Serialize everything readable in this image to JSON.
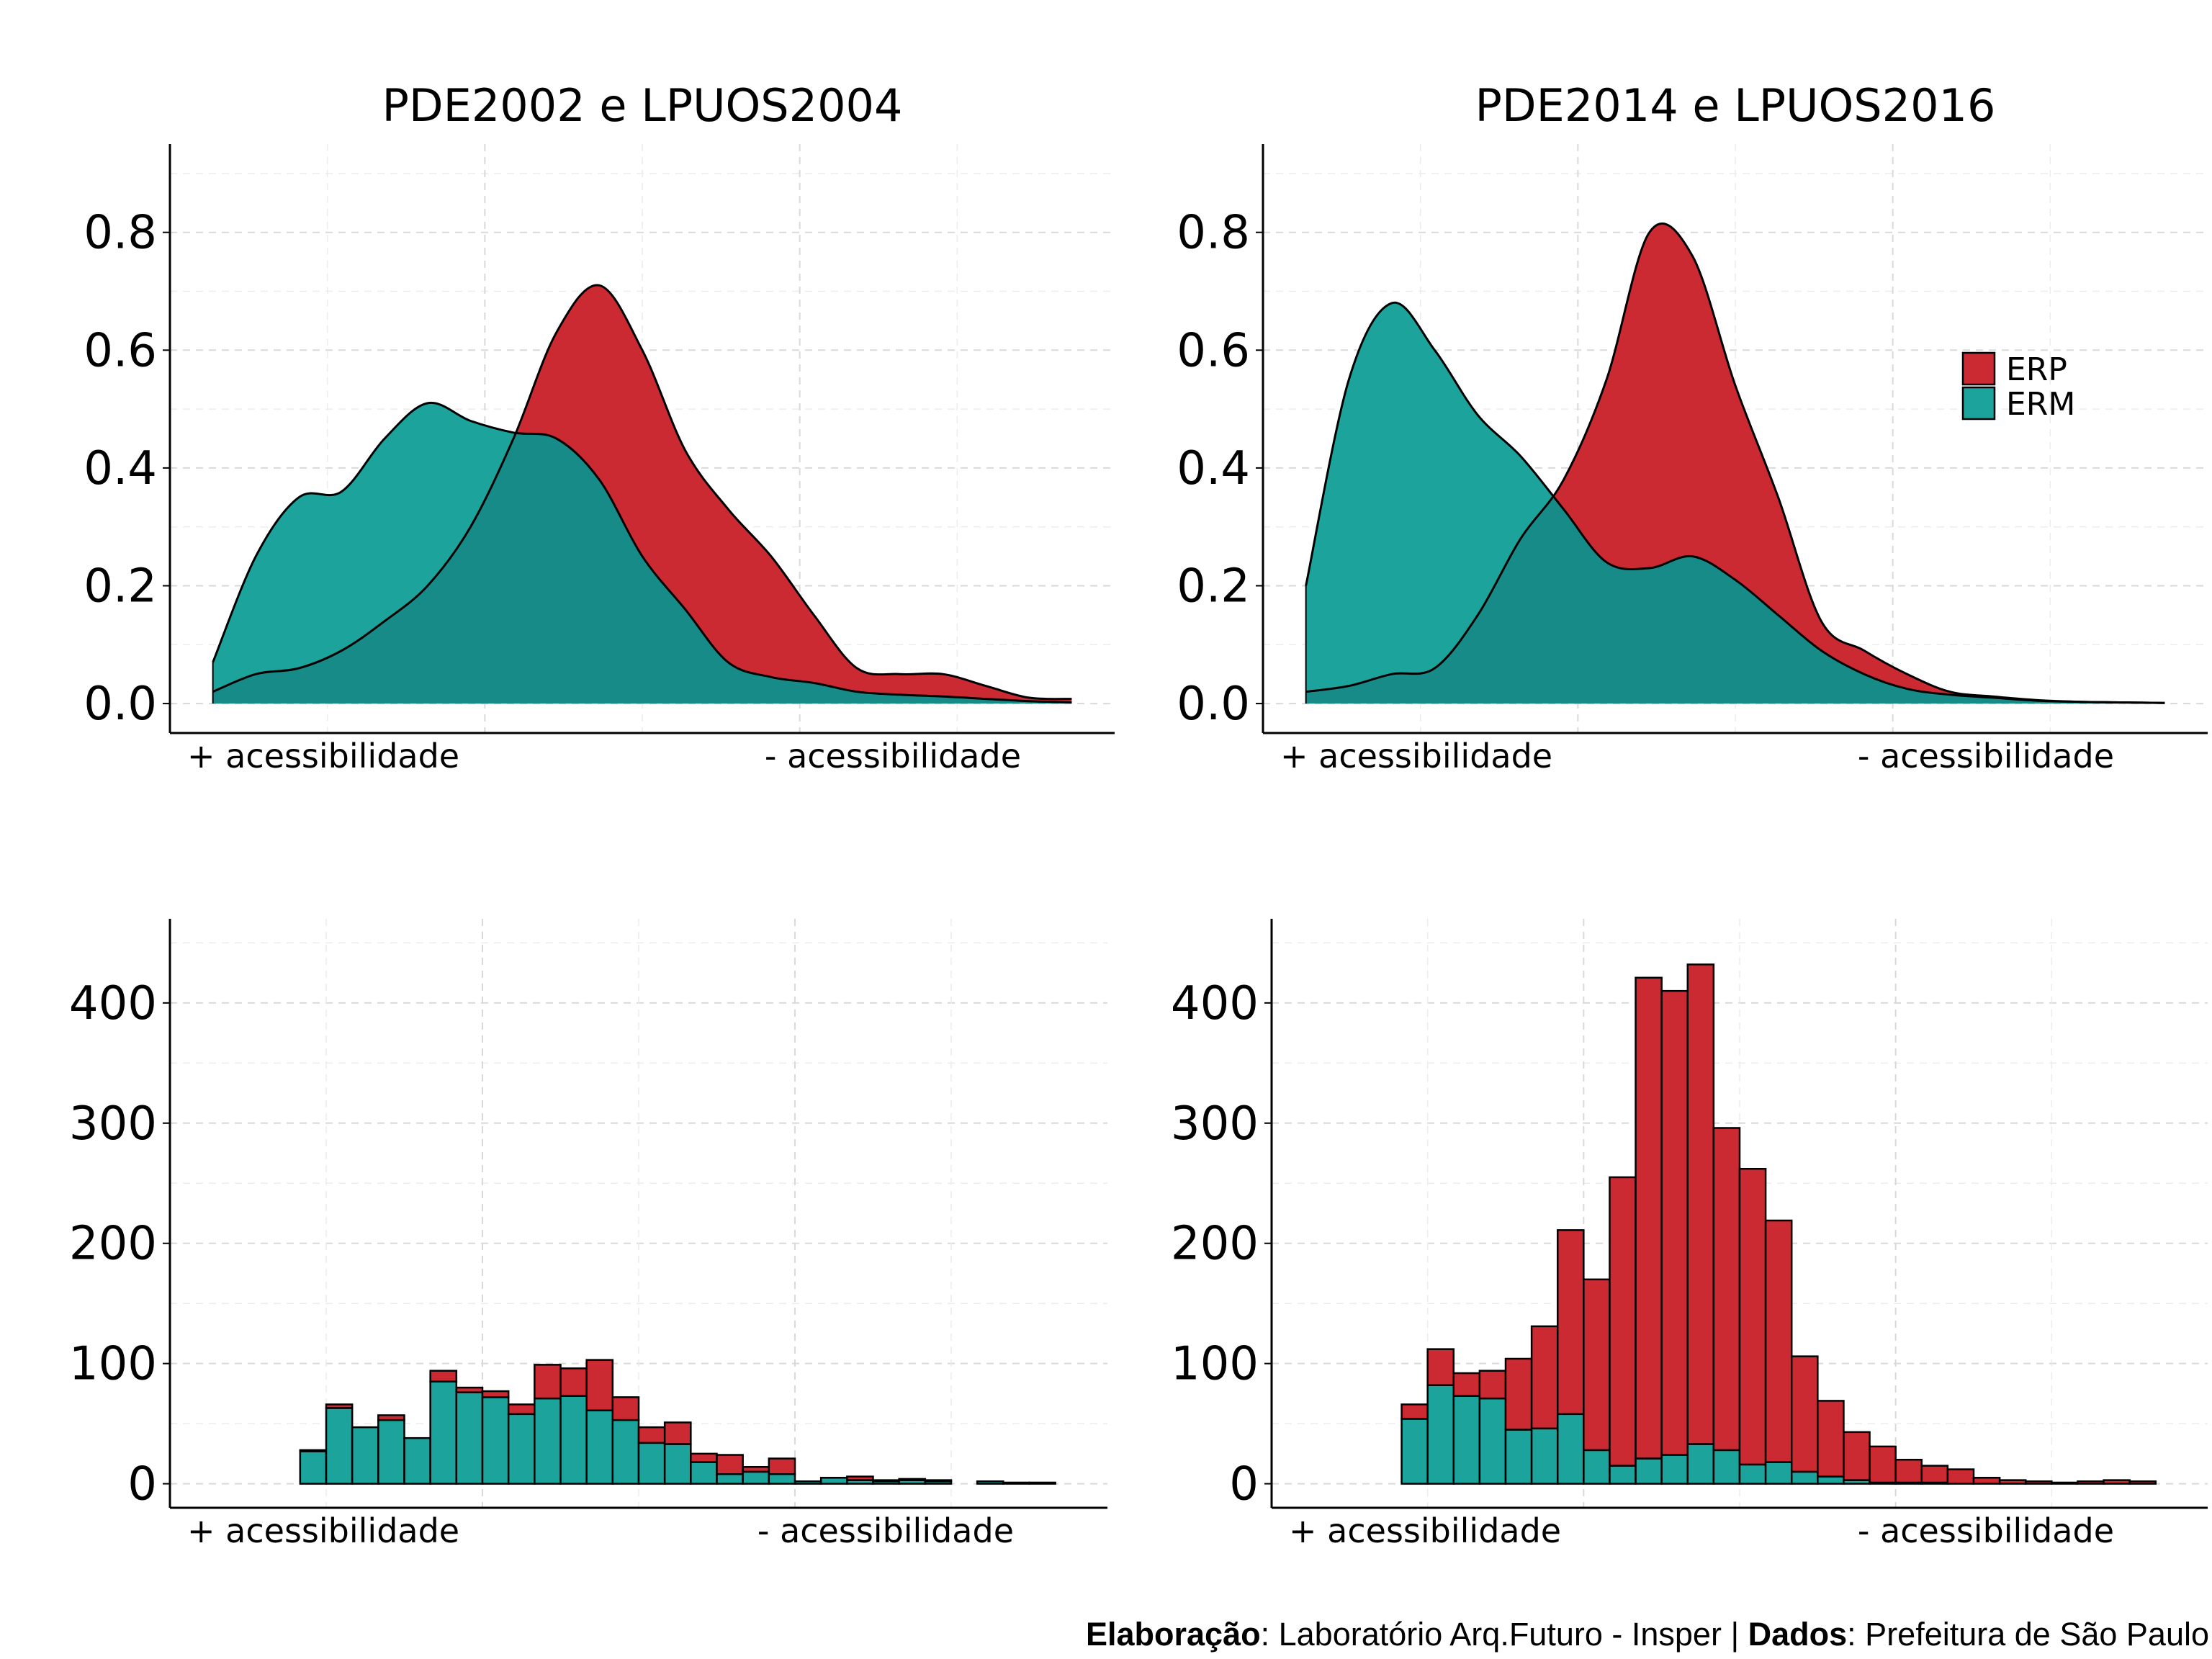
{
  "colors": {
    "ERP": "#cc2a33",
    "ERM": "#1ba39c",
    "overlap": "#178b87"
  },
  "legend": {
    "items": [
      "ERP",
      "ERM"
    ],
    "position": "top-right of top-right panel"
  },
  "caption": {
    "label1": "Elaboração",
    "text1": ": Laboratório Arq.Futuro - Insper | ",
    "label2": "Dados",
    "text2": ": Prefeitura de São Paulo"
  },
  "chart_data": [
    {
      "panel": "top-left",
      "type": "area",
      "title": "PDE2002 e LPUOS2004",
      "xlabel_left": "+ acessibilidade",
      "xlabel_right": "- acessibilidade",
      "x": [
        0,
        1,
        2,
        3,
        4,
        5,
        6,
        7,
        8,
        9,
        10,
        11,
        12,
        13,
        14,
        15,
        16,
        17,
        18,
        19,
        20
      ],
      "xlim": [
        -1,
        21
      ],
      "ylim": [
        -0.05,
        0.95
      ],
      "yticks": [
        "0.0",
        "0.2",
        "0.4",
        "0.6",
        "0.8"
      ],
      "ytick_values": [
        0,
        0.2,
        0.4,
        0.6,
        0.8
      ],
      "grid": true,
      "series": [
        {
          "name": "ERP",
          "values": [
            0.02,
            0.05,
            0.06,
            0.09,
            0.14,
            0.2,
            0.3,
            0.45,
            0.63,
            0.71,
            0.6,
            0.43,
            0.33,
            0.25,
            0.15,
            0.06,
            0.05,
            0.05,
            0.03,
            0.01,
            0.008
          ]
        },
        {
          "name": "ERM",
          "values": [
            0.07,
            0.25,
            0.35,
            0.36,
            0.45,
            0.51,
            0.48,
            0.46,
            0.45,
            0.38,
            0.25,
            0.16,
            0.07,
            0.045,
            0.035,
            0.02,
            0.015,
            0.012,
            0.008,
            0.004,
            0.002
          ]
        }
      ]
    },
    {
      "panel": "top-right",
      "type": "area",
      "title": "PDE2014 e LPUOS2016",
      "xlabel_left": "+ acessibilidade",
      "xlabel_right": "- acessibilidade",
      "x": [
        0,
        1,
        2,
        3,
        4,
        5,
        6,
        7,
        8,
        9,
        10,
        11,
        12,
        13,
        14,
        15,
        16,
        17,
        18,
        19,
        20
      ],
      "xlim": [
        -1,
        21
      ],
      "ylim": [
        -0.05,
        0.95
      ],
      "yticks": [
        "0.0",
        "0.2",
        "0.4",
        "0.6",
        "0.8"
      ],
      "ytick_values": [
        0,
        0.2,
        0.4,
        0.6,
        0.8
      ],
      "grid": true,
      "series": [
        {
          "name": "ERP",
          "values": [
            0.02,
            0.03,
            0.05,
            0.06,
            0.15,
            0.28,
            0.38,
            0.55,
            0.8,
            0.76,
            0.54,
            0.35,
            0.14,
            0.09,
            0.05,
            0.02,
            0.012,
            0.006,
            0.003,
            0.002,
            0.001
          ]
        },
        {
          "name": "ERM",
          "values": [
            0.2,
            0.55,
            0.68,
            0.6,
            0.49,
            0.42,
            0.33,
            0.24,
            0.23,
            0.25,
            0.21,
            0.15,
            0.09,
            0.05,
            0.025,
            0.015,
            0.01,
            0.005,
            0.003,
            0.002,
            0.001
          ]
        }
      ]
    },
    {
      "panel": "bottom-left",
      "type": "bar",
      "stacked": true,
      "xlabel_left": "+ acessibilidade",
      "xlabel_right": "- acessibilidade",
      "bins": 29,
      "xlim": [
        -5,
        31
      ],
      "ylim": [
        -20,
        470
      ],
      "yticks": [
        "0",
        "100",
        "200",
        "300",
        "400"
      ],
      "ytick_values": [
        0,
        100,
        200,
        300,
        400
      ],
      "grid": true,
      "series": [
        {
          "name": "ERM",
          "values": [
            27,
            63,
            47,
            53,
            38,
            85,
            76,
            72,
            58,
            71,
            73,
            61,
            53,
            34,
            33,
            18,
            8,
            10,
            8,
            2,
            5,
            3,
            2,
            3,
            2,
            0,
            2,
            1,
            1
          ]
        },
        {
          "name": "ERP",
          "values": [
            1,
            3,
            0,
            4,
            0,
            9,
            4,
            5,
            8,
            28,
            23,
            42,
            19,
            13,
            18,
            7,
            16,
            4,
            13,
            0,
            0,
            3,
            1,
            1,
            1,
            0,
            0,
            0,
            0
          ]
        }
      ]
    },
    {
      "panel": "bottom-right",
      "type": "bar",
      "stacked": true,
      "xlabel_left": "+ acessibilidade",
      "xlabel_right": "- acessibilidade",
      "bins": 29,
      "xlim": [
        -5,
        31
      ],
      "ylim": [
        -20,
        470
      ],
      "yticks": [
        "0",
        "100",
        "200",
        "300",
        "400"
      ],
      "ytick_values": [
        0,
        100,
        200,
        300,
        400
      ],
      "grid": true,
      "series": [
        {
          "name": "ERM",
          "values": [
            54,
            82,
            73,
            71,
            45,
            46,
            58,
            28,
            15,
            21,
            24,
            33,
            28,
            16,
            18,
            10,
            6,
            3,
            1,
            1,
            1,
            0,
            0,
            0,
            0,
            0,
            0,
            0,
            0
          ]
        },
        {
          "name": "ERP",
          "values": [
            12,
            30,
            19,
            23,
            59,
            85,
            153,
            142,
            240,
            400,
            386,
            399,
            268,
            246,
            201,
            96,
            63,
            40,
            30,
            19,
            14,
            12,
            5,
            3,
            2,
            1,
            2,
            3,
            2
          ]
        }
      ]
    }
  ]
}
